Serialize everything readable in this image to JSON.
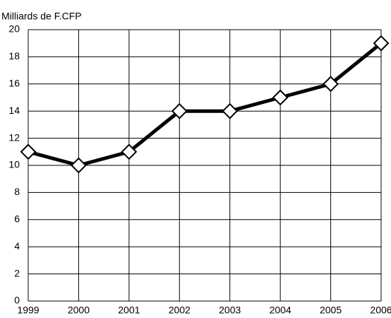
{
  "chart_data": {
    "type": "line",
    "y_label": "Milliards de F.CFP",
    "x": [
      1999,
      2000,
      2001,
      2002,
      2003,
      2004,
      2005,
      2006
    ],
    "series": [
      {
        "color": "#000000",
        "values": [
          11,
          10,
          11,
          14,
          14,
          15,
          16,
          19
        ]
      }
    ],
    "xlim": [
      1999,
      2006
    ],
    "xticks": [
      1999,
      2000,
      2001,
      2002,
      2003,
      2004,
      2005,
      2006
    ],
    "ylim": [
      0,
      20
    ],
    "yticks": [
      0,
      2,
      4,
      6,
      8,
      10,
      12,
      14,
      16,
      18,
      20
    ],
    "grid": true
  }
}
